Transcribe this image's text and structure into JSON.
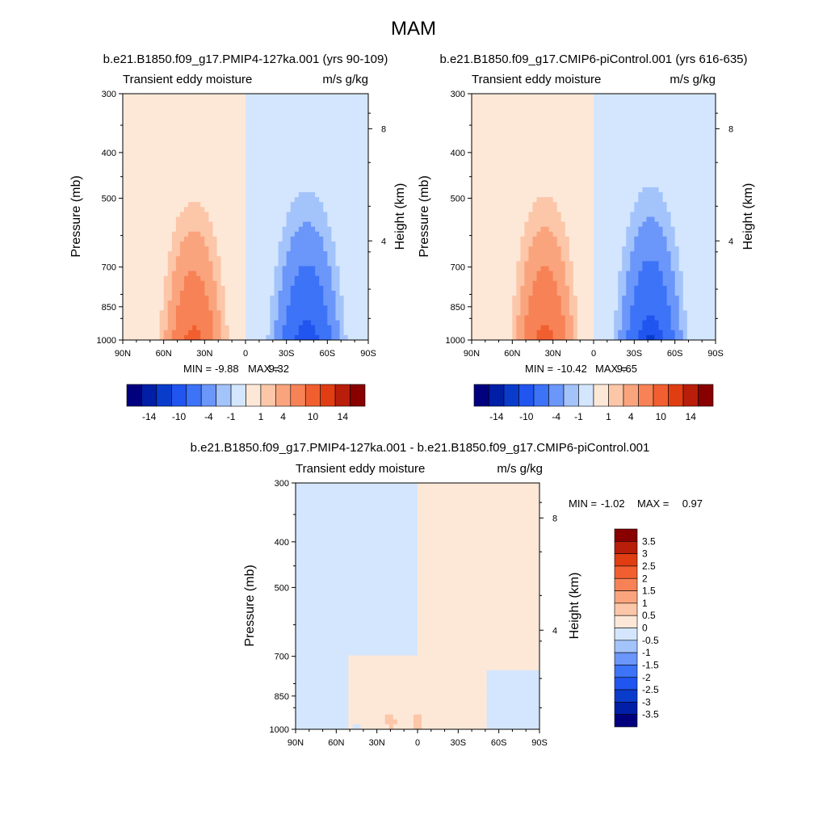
{
  "figure": {
    "title": "MAM"
  },
  "colors": {
    "panels_scale": [
      "#00007f",
      "#001ea6",
      "#0a3ccc",
      "#2155ef",
      "#3c73f7",
      "#6b96fa",
      "#a3c3fb",
      "#d4e6fd",
      "#fde8d8",
      "#fcc6a8",
      "#faa47e",
      "#f78256",
      "#f15f30",
      "#e03d13",
      "#b81e0a",
      "#880000"
    ],
    "diff_scale": [
      "#00007f",
      "#001ea6",
      "#0a3ccc",
      "#2155ef",
      "#3c73f7",
      "#6b96fa",
      "#a3c3fb",
      "#d4e6fd",
      "#fde8d8",
      "#fcc6a8",
      "#faa47e",
      "#f78256",
      "#f15f30",
      "#e03d13",
      "#b81e0a",
      "#880000"
    ]
  },
  "chart_data": [
    {
      "type": "heatmap",
      "panel_title": "b.e21.B1850.f09_g17.PMIP4-127ka.001 (yrs 90-109)",
      "left_label": "Transient eddy moisture",
      "right_label": "m/s g/kg",
      "ylabel": "Pressure (mb)",
      "ylabel_right": "Height (km)",
      "y_ticks": [
        "300",
        "400",
        "500",
        "700",
        "850",
        "1000"
      ],
      "y_tick_values": [
        300,
        400,
        500,
        700,
        850,
        1000
      ],
      "y_right_ticks": [
        "8",
        "4"
      ],
      "y_right_tick_values": [
        356,
        616
      ],
      "x_ticks": [
        "90N",
        "60N",
        "30N",
        "0",
        "30S",
        "60S",
        "90S"
      ],
      "x_tick_values": [
        90,
        60,
        30,
        0,
        -30,
        -60,
        -90
      ],
      "ylim": [
        1000,
        300
      ],
      "xlim": [
        90,
        -90
      ],
      "stats": {
        "min_label": "MIN =",
        "min_value": "-9.88",
        "max_label": "MAX =",
        "max_value": "9.32"
      },
      "colorbar_labels": [
        "-14",
        "-10",
        "-4",
        "-1",
        "1",
        "4",
        "10",
        "14"
      ],
      "field": {
        "pos_center_lat": 38,
        "pos_amp": 9.32,
        "pos_width": 17,
        "pos_top": 400,
        "neg_center_lat": -45,
        "neg_amp": -9.88,
        "neg_width": 19,
        "neg_top": 380
      }
    },
    {
      "type": "heatmap",
      "panel_title": "b.e21.B1850.f09_g17.CMIP6-piControl.001 (yrs 616-635)",
      "left_label": "Transient eddy moisture",
      "right_label": "m/s g/kg",
      "ylabel": "Pressure (mb)",
      "ylabel_right": "Height (km)",
      "y_ticks": [
        "300",
        "400",
        "500",
        "700",
        "850",
        "1000"
      ],
      "y_tick_values": [
        300,
        400,
        500,
        700,
        850,
        1000
      ],
      "y_right_ticks": [
        "8",
        "4"
      ],
      "y_right_tick_values": [
        356,
        616
      ],
      "x_ticks": [
        "90N",
        "60N",
        "30N",
        "0",
        "30S",
        "60S",
        "90S"
      ],
      "x_tick_values": [
        90,
        60,
        30,
        0,
        -30,
        -60,
        -90
      ],
      "ylim": [
        1000,
        300
      ],
      "xlim": [
        90,
        -90
      ],
      "stats": {
        "min_label": "MIN =",
        "min_value": "-10.42",
        "max_label": "MAX =",
        "max_value": "9.65"
      },
      "colorbar_labels": [
        "-14",
        "-10",
        "-4",
        "-1",
        "1",
        "4",
        "10",
        "14"
      ],
      "field": {
        "pos_center_lat": 36,
        "pos_amp": 9.65,
        "pos_width": 17,
        "pos_top": 390,
        "neg_center_lat": -42,
        "neg_amp": -10.42,
        "neg_width": 18,
        "neg_top": 370
      }
    },
    {
      "type": "heatmap",
      "panel_title": "b.e21.B1850.f09_g17.PMIP4-127ka.001 - b.e21.B1850.f09_g17.CMIP6-piControl.001",
      "left_label": "Transient eddy moisture",
      "right_label": "m/s g/kg",
      "ylabel": "Pressure (mb)",
      "ylabel_right": "Height (km)",
      "y_ticks": [
        "300",
        "400",
        "500",
        "700",
        "850",
        "1000"
      ],
      "y_tick_values": [
        300,
        400,
        500,
        700,
        850,
        1000
      ],
      "y_right_ticks": [
        "8",
        "4"
      ],
      "y_right_tick_values": [
        356,
        616
      ],
      "x_ticks": [
        "90N",
        "60N",
        "30N",
        "0",
        "30S",
        "60S",
        "90S"
      ],
      "x_tick_values": [
        90,
        60,
        30,
        0,
        -30,
        -60,
        -90
      ],
      "ylim": [
        1000,
        300
      ],
      "xlim": [
        90,
        -90
      ],
      "stats": {
        "min_label": "MIN =",
        "min_value": "-1.02",
        "max_label": "MAX =",
        "max_value": "0.97"
      },
      "colorbar_labels": [
        "3.5",
        "3",
        "2.5",
        "2",
        "1.5",
        "1",
        "0.5",
        "0",
        "-0.5",
        "-1",
        "-1.5",
        "-2",
        "-2.5",
        "-3",
        "-3.5"
      ]
    }
  ]
}
